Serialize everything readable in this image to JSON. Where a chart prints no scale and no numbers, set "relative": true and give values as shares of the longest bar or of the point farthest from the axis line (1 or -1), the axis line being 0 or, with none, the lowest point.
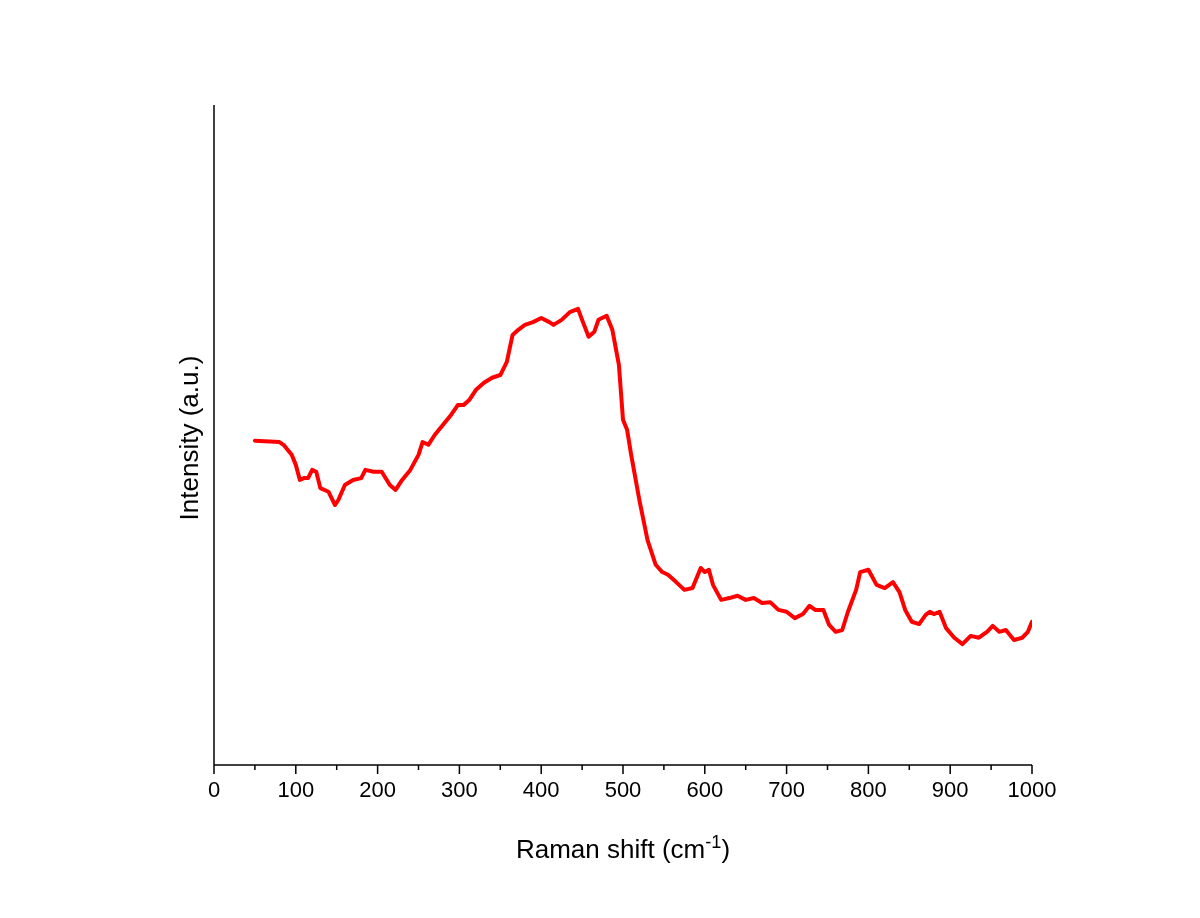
{
  "chart_data": {
    "type": "line",
    "relative": true,
    "xlabel": "Raman shift (cm$^{-1}$)",
    "ylabel": "Intensity (a.u.)",
    "xlim": [
      0,
      1000
    ],
    "xticks": [
      0,
      {
        "value": 50,
        "label": null
      },
      100,
      {
        "value": 150,
        "label": null
      },
      200,
      {
        "value": 250,
        "label": null
      },
      300,
      {
        "value": 350,
        "label": null
      },
      400,
      {
        "value": 450,
        "label": null
      },
      500,
      {
        "value": 550,
        "label": null
      },
      600,
      {
        "value": 650,
        "label": null
      },
      700,
      {
        "value": 750,
        "label": null
      },
      800,
      {
        "value": 850,
        "label": null
      },
      900,
      {
        "value": 950,
        "label": null
      },
      1000
    ],
    "series": [
      {
        "color": "#ff0000",
        "x": [
          50,
          80,
          85,
          95,
          100,
          105,
          110,
          115,
          120,
          125,
          130,
          140,
          148,
          152,
          160,
          170,
          180,
          185,
          195,
          205,
          215,
          222,
          230,
          240,
          250,
          255,
          262,
          270,
          280,
          290,
          298,
          305,
          312,
          320,
          330,
          340,
          350,
          358,
          365,
          372,
          380,
          390,
          400,
          410,
          415,
          425,
          435,
          445,
          450,
          458,
          465,
          470,
          480,
          487,
          495,
          500,
          505,
          510,
          520,
          530,
          540,
          548,
          555,
          565,
          575,
          585,
          595,
          600,
          605,
          610,
          620,
          630,
          640,
          650,
          660,
          670,
          680,
          690,
          700,
          710,
          720,
          728,
          735,
          745,
          752,
          760,
          768,
          775,
          785,
          790,
          800,
          810,
          820,
          830,
          838,
          845,
          853,
          862,
          870,
          875,
          880,
          887,
          895,
          905,
          915,
          925,
          935,
          945,
          952,
          960,
          968,
          978,
          988,
          995,
          1000
        ],
        "values": [
          0.711,
          0.708,
          0.702,
          0.68,
          0.658,
          0.625,
          0.629,
          0.629,
          0.647,
          0.643,
          0.607,
          0.599,
          0.57,
          0.581,
          0.614,
          0.625,
          0.629,
          0.647,
          0.643,
          0.643,
          0.614,
          0.603,
          0.625,
          0.647,
          0.68,
          0.708,
          0.702,
          0.724,
          0.746,
          0.768,
          0.789,
          0.789,
          0.8,
          0.822,
          0.838,
          0.849,
          0.855,
          0.884,
          0.943,
          0.954,
          0.965,
          0.971,
          0.98,
          0.971,
          0.965,
          0.976,
          0.993,
          1.0,
          0.976,
          0.939,
          0.95,
          0.976,
          0.985,
          0.954,
          0.877,
          0.757,
          0.735,
          0.68,
          0.581,
          0.493,
          0.439,
          0.423,
          0.417,
          0.401,
          0.384,
          0.388,
          0.432,
          0.423,
          0.428,
          0.395,
          0.362,
          0.366,
          0.371,
          0.362,
          0.366,
          0.355,
          0.357,
          0.34,
          0.336,
          0.322,
          0.331,
          0.349,
          0.34,
          0.34,
          0.307,
          0.292,
          0.296,
          0.336,
          0.384,
          0.423,
          0.428,
          0.395,
          0.388,
          0.401,
          0.379,
          0.34,
          0.314,
          0.309,
          0.329,
          0.336,
          0.331,
          0.336,
          0.3,
          0.279,
          0.265,
          0.283,
          0.279,
          0.292,
          0.305,
          0.292,
          0.296,
          0.274,
          0.279,
          0.292,
          0.314
        ]
      }
    ]
  }
}
